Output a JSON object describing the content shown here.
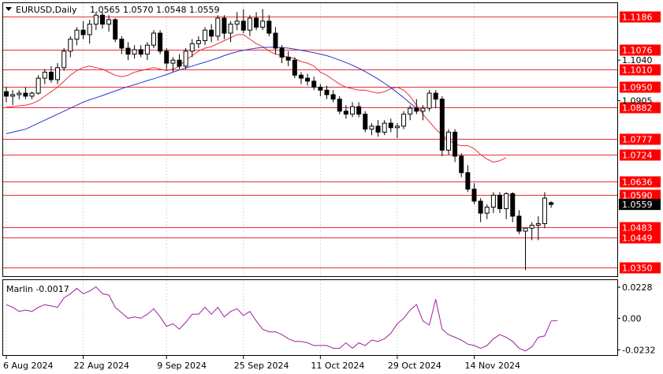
{
  "chart_data": [
    {
      "type": "candlestick",
      "symbol_header": "EURUSD,Daily",
      "ohlc_header": "1.0565 1.0570 1.0548 1.0559",
      "current_price": "1.0559",
      "ylim": [
        1.032,
        1.123
      ],
      "y_tick_labels": [
        "1.1040",
        "1.0905"
      ],
      "y_tick_values": [
        1.104,
        1.0905
      ],
      "x_tick_labels": [
        "6 Aug 2024",
        "22 Aug 2024",
        "9 Sep 2024",
        "25 Sep 2024",
        "11 Oct 2024",
        "29 Oct 2024",
        "14 Nov 2024"
      ],
      "x_tick_index": [
        0,
        12,
        25,
        37,
        49,
        61,
        73
      ],
      "levels": [
        {
          "value": 1.1186,
          "label": "1.1186"
        },
        {
          "value": 1.1076,
          "label": "1.1076"
        },
        {
          "value": 1.101,
          "label": "1.1010"
        },
        {
          "value": 1.095,
          "label": "1.0950"
        },
        {
          "value": 1.0882,
          "label": "1.0882"
        },
        {
          "value": 1.0777,
          "label": "1.0777"
        },
        {
          "value": 1.0724,
          "label": "1.0724"
        },
        {
          "value": 1.0636,
          "label": "1.0636"
        },
        {
          "value": 1.059,
          "label": "1.0590"
        },
        {
          "value": 1.0483,
          "label": "1.0483"
        },
        {
          "value": 1.0449,
          "label": "1.0449"
        },
        {
          "value": 1.035,
          "label": "1.0350"
        }
      ],
      "candles": [
        [
          1.0935,
          1.095,
          1.09,
          1.092
        ],
        [
          1.092,
          1.094,
          1.089,
          1.0925
        ],
        [
          1.0925,
          1.094,
          1.091,
          1.093
        ],
        [
          1.093,
          1.095,
          1.091,
          1.092
        ],
        [
          1.092,
          1.0935,
          1.091,
          1.093
        ],
        [
          1.093,
          1.099,
          1.0925,
          1.098
        ],
        [
          1.098,
          1.101,
          1.096,
          1.1
        ],
        [
          1.1,
          1.102,
          1.0965,
          1.0975
        ],
        [
          1.0975,
          1.103,
          1.096,
          1.1015
        ],
        [
          1.1015,
          1.108,
          1.1005,
          1.107
        ],
        [
          1.107,
          1.112,
          1.105,
          1.111
        ],
        [
          1.111,
          1.115,
          1.109,
          1.114
        ],
        [
          1.114,
          1.117,
          1.111,
          1.1125
        ],
        [
          1.1125,
          1.1175,
          1.1095,
          1.116
        ],
        [
          1.116,
          1.12,
          1.114,
          1.119
        ],
        [
          1.119,
          1.12,
          1.1145,
          1.116
        ],
        [
          1.116,
          1.119,
          1.1135,
          1.1175
        ],
        [
          1.1175,
          1.118,
          1.11,
          1.111
        ],
        [
          1.111,
          1.112,
          1.106,
          1.108
        ],
        [
          1.108,
          1.11,
          1.104,
          1.106
        ],
        [
          1.106,
          1.109,
          1.1045,
          1.1075
        ],
        [
          1.1075,
          1.109,
          1.105,
          1.106
        ],
        [
          1.106,
          1.11,
          1.104,
          1.109
        ],
        [
          1.109,
          1.114,
          1.108,
          1.113
        ],
        [
          1.113,
          1.114,
          1.106,
          1.107
        ],
        [
          1.107,
          1.108,
          1.101,
          1.103
        ],
        [
          1.103,
          1.105,
          1.1,
          1.104
        ],
        [
          1.104,
          1.106,
          1.101,
          1.102
        ],
        [
          1.102,
          1.108,
          1.101,
          1.107
        ],
        [
          1.107,
          1.111,
          1.105,
          1.1095
        ],
        [
          1.1095,
          1.112,
          1.108,
          1.1105
        ],
        [
          1.1105,
          1.115,
          1.109,
          1.114
        ],
        [
          1.114,
          1.116,
          1.11,
          1.112
        ],
        [
          1.112,
          1.119,
          1.1105,
          1.118
        ],
        [
          1.118,
          1.119,
          1.111,
          1.113
        ],
        [
          1.113,
          1.117,
          1.11,
          1.116
        ],
        [
          1.116,
          1.12,
          1.114,
          1.117
        ],
        [
          1.117,
          1.121,
          1.113,
          1.114
        ],
        [
          1.114,
          1.119,
          1.112,
          1.118
        ],
        [
          1.118,
          1.12,
          1.114,
          1.115
        ],
        [
          1.115,
          1.121,
          1.114,
          1.117
        ],
        [
          1.117,
          1.119,
          1.112,
          1.113
        ],
        [
          1.113,
          1.115,
          1.106,
          1.108
        ],
        [
          1.108,
          1.109,
          1.103,
          1.105
        ],
        [
          1.105,
          1.107,
          1.102,
          1.104
        ],
        [
          1.104,
          1.105,
          1.098,
          1.099
        ],
        [
          1.099,
          1.1,
          1.096,
          1.098
        ],
        [
          1.098,
          1.0995,
          1.0955,
          1.097
        ],
        [
          1.097,
          1.0985,
          1.094,
          1.095
        ],
        [
          1.095,
          1.096,
          1.092,
          1.094
        ],
        [
          1.094,
          1.0955,
          1.091,
          1.0925
        ],
        [
          1.0925,
          1.094,
          1.09,
          1.091
        ],
        [
          1.091,
          1.092,
          1.086,
          1.087
        ],
        [
          1.087,
          1.089,
          1.0845,
          1.086
        ],
        [
          1.086,
          1.09,
          1.085,
          1.0885
        ],
        [
          1.0885,
          1.09,
          1.085,
          1.086
        ],
        [
          1.086,
          1.087,
          1.08,
          1.081
        ],
        [
          1.081,
          1.083,
          1.079,
          1.082
        ],
        [
          1.082,
          1.084,
          1.0785,
          1.08
        ],
        [
          1.08,
          1.084,
          1.079,
          1.083
        ],
        [
          1.083,
          1.0845,
          1.08,
          1.0815
        ],
        [
          1.0815,
          1.083,
          1.078,
          1.082
        ],
        [
          1.082,
          1.087,
          1.081,
          1.086
        ],
        [
          1.086,
          1.089,
          1.084,
          1.088
        ],
        [
          1.088,
          1.091,
          1.086,
          1.087
        ],
        [
          1.087,
          1.089,
          1.084,
          1.088
        ],
        [
          1.088,
          1.094,
          1.087,
          1.093
        ],
        [
          1.093,
          1.094,
          1.088,
          1.091
        ],
        [
          1.091,
          1.092,
          1.072,
          1.074
        ],
        [
          1.074,
          1.081,
          1.0725,
          1.08
        ],
        [
          1.08,
          1.081,
          1.07,
          1.072
        ],
        [
          1.072,
          1.073,
          1.065,
          1.0665
        ],
        [
          1.0665,
          1.069,
          1.06,
          1.061
        ],
        [
          1.061,
          1.063,
          1.056,
          1.057
        ],
        [
          1.057,
          1.058,
          1.05,
          1.053
        ],
        [
          1.053,
          1.056,
          1.051,
          1.055
        ],
        [
          1.055,
          1.06,
          1.053,
          1.059
        ],
        [
          1.059,
          1.06,
          1.053,
          1.0545
        ],
        [
          1.0545,
          1.06,
          1.051,
          1.0595
        ],
        [
          1.0595,
          1.06,
          1.05,
          1.052
        ],
        [
          1.052,
          1.054,
          1.046,
          1.047
        ],
        [
          1.047,
          1.048,
          1.034,
          1.048
        ],
        [
          1.048,
          1.05,
          1.044,
          1.049
        ],
        [
          1.049,
          1.052,
          1.044,
          1.0495
        ],
        [
          1.0495,
          1.06,
          1.048,
          1.058
        ],
        [
          1.0565,
          1.057,
          1.0548,
          1.0559
        ]
      ],
      "series": [
        {
          "name": "MA red",
          "color": "#e8303a",
          "start_index": 0,
          "values": [
            1.0885,
            1.0885,
            1.0888,
            1.089,
            1.0895,
            1.0905,
            1.092,
            1.0935,
            1.095,
            1.097,
            1.099,
            1.1005,
            1.1015,
            1.102,
            1.1015,
            1.101,
            1.1,
            1.099,
            1.0985,
            1.099,
            1.1,
            1.1005,
            1.101,
            1.1015,
            1.101,
            1.1005,
            1.101,
            1.102,
            1.104,
            1.1055,
            1.107,
            1.108,
            1.1085,
            1.1095,
            1.1105,
            1.1115,
            1.1125,
            1.1125,
            1.111,
            1.1095,
            1.1085,
            1.107,
            1.106,
            1.1055,
            1.105,
            1.1045,
            1.1035,
            1.103,
            1.102,
            1.1,
            1.099,
            1.0975,
            1.096,
            1.095,
            1.0945,
            1.094,
            1.094,
            1.0935,
            1.093,
            1.0935,
            1.0945,
            1.095,
            1.094,
            1.092,
            1.089,
            1.086,
            1.0835,
            1.081,
            1.079,
            1.0775,
            1.076,
            1.0755,
            1.0755,
            1.0745,
            1.0725,
            1.071,
            1.07,
            1.0705,
            1.0715
          ]
        },
        {
          "name": "MA blue",
          "color": "#2a36cc",
          "start_index": 0,
          "values": [
            1.0795,
            1.08,
            1.0805,
            1.081,
            1.082,
            1.083,
            1.084,
            1.085,
            1.086,
            1.087,
            1.088,
            1.089,
            1.09,
            1.0908,
            1.0915,
            1.0922,
            1.093,
            1.0937,
            1.0945,
            1.0952,
            1.0958,
            1.0965,
            1.0972,
            1.0978,
            1.0985,
            1.0992,
            1.1,
            1.1007,
            1.1014,
            1.102,
            1.1027,
            1.1033,
            1.104,
            1.1047,
            1.1055,
            1.1062,
            1.1068,
            1.1073,
            1.1077,
            1.108,
            1.1082,
            1.1083,
            1.1083,
            1.1082,
            1.108,
            1.1077,
            1.1073,
            1.1069,
            1.1065,
            1.106,
            1.1055,
            1.1048,
            1.104,
            1.1032,
            1.1023,
            1.1013,
            1.1002,
            1.099,
            1.0977,
            1.0963,
            1.0948,
            1.0932,
            1.0915,
            1.0897,
            1.088
          ]
        }
      ]
    },
    {
      "type": "line",
      "title": "Marlin -0.0017",
      "ylim": [
        -0.027,
        0.028
      ],
      "y_tick_labels": [
        "0.0228",
        "0.00",
        "-0.0232"
      ],
      "y_tick_values": [
        0.0228,
        0.0,
        -0.0232
      ],
      "series": [
        {
          "name": "Marlin",
          "color": "#a020a0",
          "values": [
            0.01,
            0.008,
            0.005,
            0.006,
            0.005,
            0.008,
            0.01,
            0.009,
            0.008,
            0.015,
            0.018,
            0.022,
            0.018,
            0.02,
            0.023,
            0.018,
            0.017,
            0.008,
            0.004,
            0.0,
            0.001,
            0.0,
            0.003,
            0.007,
            0.001,
            -0.006,
            -0.004,
            -0.008,
            -0.003,
            0.003,
            0.003,
            0.008,
            0.003,
            0.008,
            0.001,
            0.005,
            0.007,
            0.002,
            0.005,
            -0.002,
            -0.008,
            -0.01,
            -0.01,
            -0.012,
            -0.015,
            -0.017,
            -0.017,
            -0.018,
            -0.02,
            -0.02,
            -0.02,
            -0.022,
            -0.022,
            -0.018,
            -0.022,
            -0.018,
            -0.02,
            -0.016,
            -0.017,
            -0.015,
            -0.011,
            -0.004,
            0.0,
            0.006,
            0.01,
            -0.002,
            -0.005,
            0.014,
            -0.008,
            -0.012,
            -0.014,
            -0.016,
            -0.019,
            -0.02,
            -0.022,
            -0.02,
            -0.015,
            -0.012,
            -0.014,
            -0.017,
            -0.022,
            -0.024,
            -0.021,
            -0.014,
            -0.013,
            -0.002,
            -0.0017
          ]
        }
      ]
    }
  ]
}
